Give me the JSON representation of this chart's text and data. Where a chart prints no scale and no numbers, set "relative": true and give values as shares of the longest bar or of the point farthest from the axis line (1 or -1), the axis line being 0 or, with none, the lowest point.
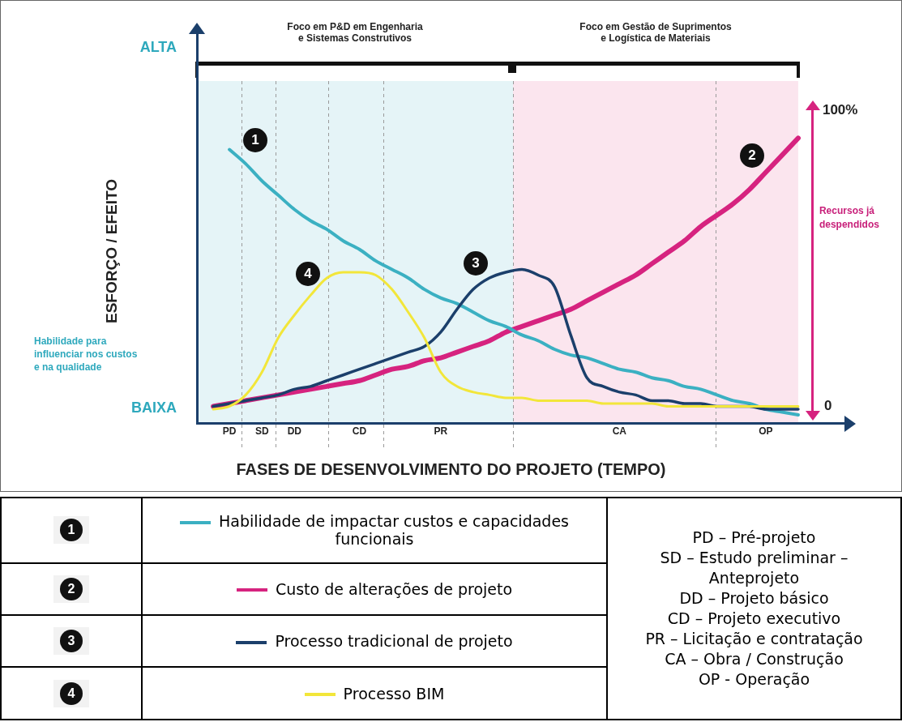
{
  "chart_data": {
    "type": "line",
    "relative": true,
    "xlabel": "FASES DE DESENVOLVIMENTO DO PROJETO (TEMPO)",
    "ylabel": "ESFORÇO / EFEITO",
    "legend": "bottom",
    "marker": "none",
    "categories": [
      null,
      "PD",
      null,
      "SD",
      null,
      "DD",
      null,
      null,
      null,
      "CD",
      null,
      null,
      null,
      null,
      "PR",
      null,
      null,
      null,
      null,
      null,
      null,
      null,
      null,
      null,
      null,
      "CA",
      null,
      null,
      null,
      null,
      null,
      null,
      null,
      null,
      "OP",
      null,
      null
    ],
    "series": [
      {
        "name": "Habilidade de impactar custos e capacidades funcionais",
        "color": "#3bb0c2",
        "values": [
          null,
          0.96,
          0.91,
          0.85,
          0.8,
          0.75,
          0.71,
          0.68,
          0.64,
          0.61,
          0.57,
          0.54,
          0.51,
          0.47,
          0.44,
          0.42,
          0.39,
          0.36,
          0.34,
          0.31,
          0.29,
          0.26,
          0.24,
          0.23,
          0.21,
          0.19,
          0.18,
          0.16,
          0.15,
          0.13,
          0.12,
          0.1,
          0.08,
          0.07,
          0.05,
          0.04,
          0.03
        ]
      },
      {
        "name": "Custo de alterações de projeto",
        "color": "#d6237f",
        "values": [
          0.06,
          0.07,
          0.08,
          0.09,
          0.1,
          0.11,
          0.12,
          0.13,
          0.14,
          0.15,
          0.17,
          0.19,
          0.2,
          0.22,
          0.23,
          0.25,
          0.27,
          0.29,
          0.32,
          0.34,
          0.36,
          0.38,
          0.4,
          0.43,
          0.46,
          0.49,
          0.52,
          0.56,
          0.6,
          0.64,
          0.69,
          0.73,
          0.77,
          0.82,
          0.88,
          0.94,
          1
        ]
      },
      {
        "name": "Processo tradicional de projeto",
        "color": "#1b3f6b",
        "values": [
          0.06,
          0.07,
          0.08,
          0.09,
          0.1,
          0.12,
          0.13,
          0.15,
          0.17,
          0.19,
          0.21,
          0.23,
          0.25,
          0.27,
          0.32,
          0.4,
          0.47,
          0.51,
          0.53,
          0.54,
          0.52,
          0.48,
          0.31,
          0.16,
          0.13,
          0.11,
          0.1,
          0.08,
          0.08,
          0.07,
          0.07,
          0.06,
          0.06,
          0.06,
          0.05,
          0.05,
          0.05
        ]
      },
      {
        "name": "Processo BIM",
        "color": "#f2e63a",
        "values": [
          0.05,
          0.06,
          0.1,
          0.18,
          0.3,
          0.38,
          0.45,
          0.51,
          0.53,
          0.53,
          0.52,
          0.47,
          0.39,
          0.3,
          0.18,
          0.13,
          0.11,
          0.1,
          0.09,
          0.09,
          0.08,
          0.08,
          0.08,
          0.08,
          0.07,
          0.07,
          0.07,
          0.07,
          0.06,
          0.06,
          0.06,
          0.06,
          0.06,
          0.06,
          0.06,
          0.06,
          0.06
        ]
      }
    ],
    "annotations": [
      "Foco em P&D em Engenharia\ne Sistemas Construtivos",
      "Foco em Gestão de Suprimentos\ne Logística de Materiais",
      "ALTA",
      "BAIXA",
      "Habilidade para\ninfluenciar nos custos\ne na qualidade",
      "100%",
      "0",
      "Recursos já\ndespendidos",
      "1",
      "2",
      "3",
      "4",
      "PD – Pré-projeto\nSD – Estudo preliminar –\nAnteprojeto\nDD – Projeto básico\nCD – Projeto executivo\nPR – Licitação e contratação\nCA – Obra / Construção\nOP - Operação"
    ]
  }
}
